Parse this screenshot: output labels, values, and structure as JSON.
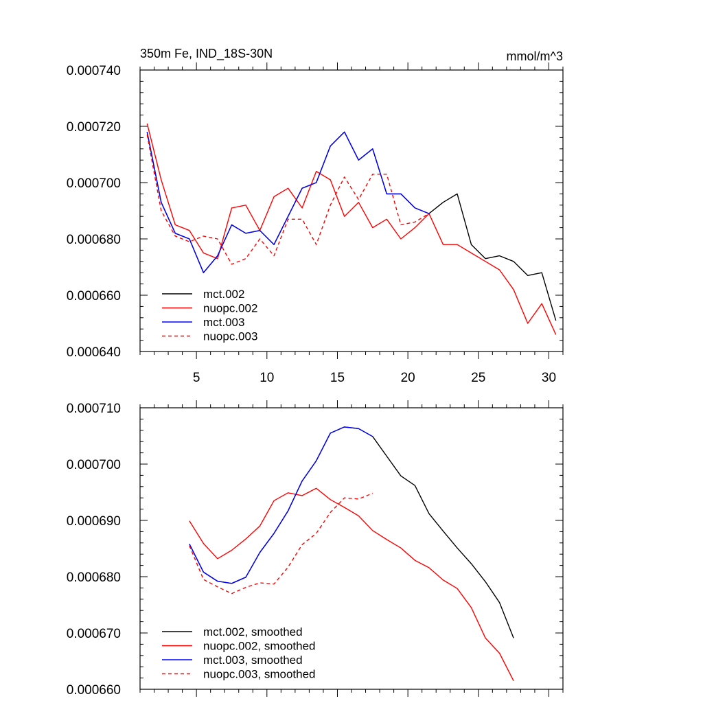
{
  "chart_data": [
    {
      "type": "line",
      "title": "350m Fe, IND_18S-30N",
      "units": "mmol/m^3",
      "xlim": [
        1,
        31
      ],
      "ylim": [
        0.00064,
        0.00074
      ],
      "xticks": [
        5,
        10,
        15,
        20,
        25,
        30
      ],
      "xtick_labels": [
        "5",
        "10",
        "15",
        "20",
        "25",
        "30"
      ],
      "yticks": [
        0.00064,
        0.00066,
        0.00068,
        0.0007,
        0.00072,
        0.00074
      ],
      "ytick_labels": [
        "0.000640",
        "0.000660",
        "0.000680",
        "0.000700",
        "0.000720",
        "0.000740"
      ],
      "legend_position": "bottom-left",
      "series": [
        {
          "name": "mct.002",
          "color": "#000000",
          "dash": "solid",
          "x": [
            1.5,
            2.5,
            3.5,
            4.5,
            5.5,
            6.5,
            7.5,
            8.5,
            9.5,
            10.5,
            11.5,
            12.5,
            13.5,
            14.5,
            15.5,
            16.5,
            17.5,
            18.5,
            19.5,
            20.5,
            21.5,
            22.5,
            23.5,
            24.5,
            25.5,
            26.5,
            27.5,
            28.5,
            29.5,
            30.5
          ],
          "values": [
            0.000718,
            0.000693,
            0.000682,
            0.00068,
            0.000668,
            0.000674,
            0.000685,
            0.000682,
            0.000683,
            0.000678,
            0.000688,
            0.000698,
            0.0007,
            0.000713,
            0.000718,
            0.000708,
            0.000712,
            0.000696,
            0.000696,
            0.000691,
            0.000689,
            0.000693,
            0.000696,
            0.000678,
            0.000673,
            0.000674,
            0.000672,
            0.000667,
            0.000668,
            0.000651
          ]
        },
        {
          "name": "nuopc.002",
          "color": "#ff0000",
          "dash": "solid",
          "x": [
            1.5,
            2.5,
            3.5,
            4.5,
            5.5,
            6.5,
            7.5,
            8.5,
            9.5,
            10.5,
            11.5,
            12.5,
            13.5,
            14.5,
            15.5,
            16.5,
            17.5,
            18.5,
            19.5,
            20.5,
            21.5,
            22.5,
            23.5,
            24.5,
            25.5,
            26.5,
            27.5,
            28.5,
            29.5,
            30.5
          ],
          "values": [
            0.000721,
            0.000701,
            0.000685,
            0.000683,
            0.000675,
            0.000673,
            0.000691,
            0.000692,
            0.000683,
            0.000695,
            0.000698,
            0.000691,
            0.000704,
            0.000701,
            0.000688,
            0.000693,
            0.000684,
            0.000687,
            0.00068,
            0.000684,
            0.000689,
            0.000678,
            0.000678,
            0.000675,
            0.000672,
            0.000669,
            0.000662,
            0.00065,
            0.000657,
            0.000646
          ]
        },
        {
          "name": "mct.003",
          "color": "#0000ff",
          "dash": "solid",
          "x": [
            1.5,
            2.5,
            3.5,
            4.5,
            5.5,
            6.5,
            7.5,
            8.5,
            9.5,
            10.5,
            11.5,
            12.5,
            13.5,
            14.5,
            15.5,
            16.5,
            17.5,
            18.5,
            19.5,
            20.5,
            21.5
          ],
          "values": [
            0.000718,
            0.000693,
            0.000682,
            0.00068,
            0.000668,
            0.000674,
            0.000685,
            0.000682,
            0.000683,
            0.000678,
            0.000688,
            0.000698,
            0.0007,
            0.000713,
            0.000718,
            0.000708,
            0.000712,
            0.000696,
            0.000696,
            0.000691,
            0.000689
          ]
        },
        {
          "name": "nuopc.003",
          "color": "#ff0000",
          "dash": "dashed",
          "x": [
            1.5,
            2.5,
            3.5,
            4.5,
            5.5,
            6.5,
            7.5,
            8.5,
            9.5,
            10.5,
            11.5,
            12.5,
            13.5,
            14.5,
            15.5,
            16.5,
            17.5,
            18.5,
            19.5,
            20.5,
            21.5
          ],
          "values": [
            0.000717,
            0.00069,
            0.000681,
            0.000679,
            0.000681,
            0.00068,
            0.000671,
            0.000673,
            0.00068,
            0.000674,
            0.000687,
            0.000687,
            0.000678,
            0.000692,
            0.000702,
            0.000694,
            0.000703,
            0.000703,
            0.000685,
            0.000686,
            0.000689
          ]
        }
      ]
    },
    {
      "type": "line",
      "title": "",
      "xlim": [
        1,
        31
      ],
      "ylim": [
        0.00066,
        0.00071
      ],
      "xticks": [
        5,
        10,
        15,
        20,
        25,
        30
      ],
      "xtick_labels": [],
      "yticks": [
        0.00066,
        0.00067,
        0.00068,
        0.00069,
        0.0007,
        0.00071
      ],
      "ytick_labels": [
        "0.000660",
        "0.000670",
        "0.000680",
        "0.000690",
        "0.000700",
        "0.000710"
      ],
      "legend_position": "bottom-left",
      "series": [
        {
          "name": "mct.002, smoothed",
          "color": "#000000",
          "dash": "solid",
          "x": [
            4.5,
            5.5,
            6.5,
            7.5,
            8.5,
            9.5,
            10.5,
            11.5,
            12.5,
            13.5,
            14.5,
            15.5,
            16.5,
            17.5,
            18.5,
            19.5,
            20.5,
            21.5,
            22.5,
            23.5,
            24.5,
            25.5,
            26.5,
            27.5
          ],
          "values": [
            0.0006858,
            0.0006808,
            0.0006792,
            0.0006788,
            0.0006799,
            0.0006843,
            0.0006877,
            0.0006917,
            0.000697,
            0.0007006,
            0.0007055,
            0.0007066,
            0.0007063,
            0.0007049,
            0.0007014,
            0.0006979,
            0.0006962,
            0.0006912,
            0.0006881,
            0.0006851,
            0.0006823,
            0.0006791,
            0.0006754,
            0.0006691
          ]
        },
        {
          "name": "nuopc.002, smoothed",
          "color": "#ff0000",
          "dash": "solid",
          "x": [
            4.5,
            5.5,
            6.5,
            7.5,
            8.5,
            9.5,
            10.5,
            11.5,
            12.5,
            13.5,
            14.5,
            15.5,
            16.5,
            17.5,
            18.5,
            19.5,
            20.5,
            21.5,
            22.5,
            23.5,
            24.5,
            25.5,
            26.5,
            27.5
          ],
          "values": [
            0.0006899,
            0.0006859,
            0.0006832,
            0.0006847,
            0.0006867,
            0.000689,
            0.0006935,
            0.0006949,
            0.0006944,
            0.0006957,
            0.0006937,
            0.0006923,
            0.0006908,
            0.0006882,
            0.0006866,
            0.0006851,
            0.0006829,
            0.0006816,
            0.0006794,
            0.0006779,
            0.0006745,
            0.0006691,
            0.0006664,
            0.0006615
          ]
        },
        {
          "name": "mct.003, smoothed",
          "color": "#0000ff",
          "dash": "solid",
          "x": [
            4.5,
            5.5,
            6.5,
            7.5,
            8.5,
            9.5,
            10.5,
            11.5,
            12.5,
            13.5,
            14.5,
            15.5,
            16.5,
            17.5
          ],
          "values": [
            0.0006858,
            0.0006808,
            0.0006792,
            0.0006788,
            0.0006799,
            0.0006843,
            0.0006877,
            0.0006917,
            0.000697,
            0.0007006,
            0.0007055,
            0.0007066,
            0.0007063,
            0.0007049
          ]
        },
        {
          "name": "nuopc.003, smoothed",
          "color": "#ff0000",
          "dash": "dashed",
          "x": [
            4.5,
            5.5,
            6.5,
            7.5,
            8.5,
            9.5,
            10.5,
            11.5,
            12.5,
            13.5,
            14.5,
            15.5,
            16.5,
            17.5
          ],
          "values": [
            0.0006855,
            0.0006795,
            0.0006782,
            0.000677,
            0.0006781,
            0.0006789,
            0.0006787,
            0.0006817,
            0.0006857,
            0.0006877,
            0.0006914,
            0.000694,
            0.0006938,
            0.0006948
          ]
        }
      ]
    }
  ]
}
